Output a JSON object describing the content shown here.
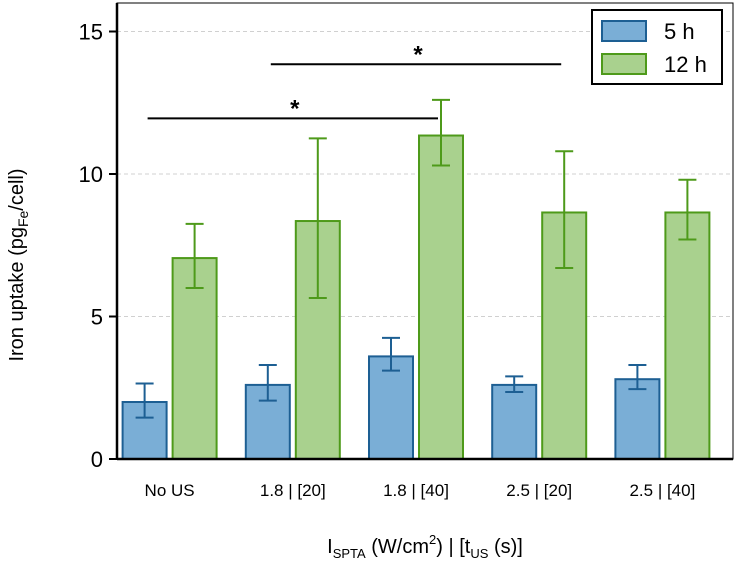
{
  "chart_data": {
    "type": "bar",
    "title": "",
    "xlabel": {
      "main": "I",
      "main_sub": "SPTA",
      "units": " (W/cm",
      "units_sup": "2",
      "units_end": ")  |  [t",
      "t_sub": "US",
      "t_end": " (s)]"
    },
    "ylabel": {
      "main": "Iron uptake (pg",
      "sub": "Fe",
      "end": "/cell)"
    },
    "ylim": [
      0,
      16
    ],
    "yticks": [
      0,
      5,
      10,
      15
    ],
    "ytick_labels": [
      "0",
      "5",
      "10",
      "15"
    ],
    "grid": true,
    "categories": [
      "No US",
      "1.8 | [20]",
      "1.8 | [40]",
      "2.5 | [20]",
      "2.5 | [40]"
    ],
    "series": [
      {
        "name": "5 h",
        "values": [
          2.0,
          2.6,
          3.6,
          2.6,
          2.8
        ],
        "error_low": [
          1.45,
          2.05,
          3.1,
          2.35,
          2.45
        ],
        "error_high": [
          2.65,
          3.3,
          4.25,
          2.9,
          3.3
        ],
        "fill": "#7aaed6",
        "stroke": "#1d5f93"
      },
      {
        "name": "12 h",
        "values": [
          7.05,
          8.35,
          11.35,
          8.65,
          8.65
        ],
        "error_low": [
          6.0,
          5.65,
          10.3,
          6.7,
          7.7
        ],
        "error_high": [
          8.25,
          11.25,
          12.6,
          10.8,
          9.8
        ],
        "fill": "#a9d18e",
        "stroke": "#4e9a1a"
      }
    ],
    "legend_position": "top-right",
    "significance": [
      {
        "from_category": 0,
        "to_category": 2,
        "y": 11.95,
        "label": "*"
      },
      {
        "from_category": 1,
        "to_category": 3,
        "y": 13.85,
        "label": "*"
      }
    ]
  }
}
